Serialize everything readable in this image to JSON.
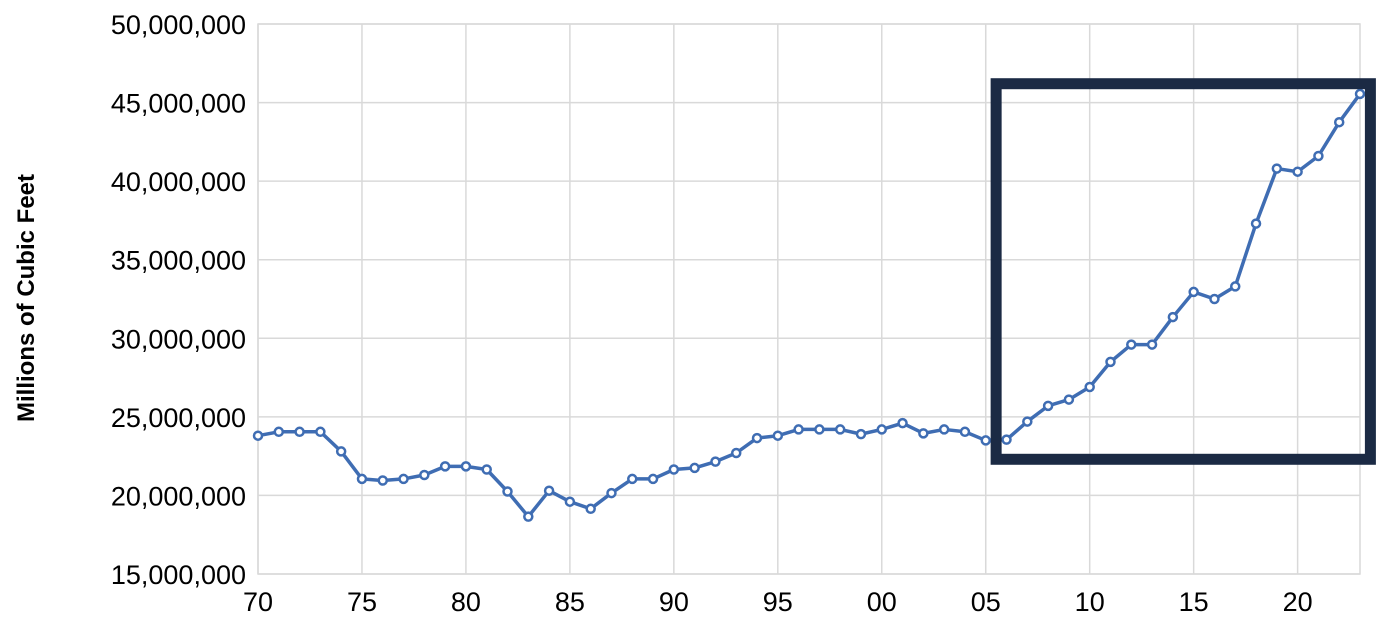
{
  "chart_data": {
    "type": "line",
    "title": "",
    "xlabel": "",
    "ylabel": "Millions of Cubic Feet",
    "x": [
      1970,
      1971,
      1972,
      1973,
      1974,
      1975,
      1976,
      1977,
      1978,
      1979,
      1980,
      1981,
      1982,
      1983,
      1984,
      1985,
      1986,
      1987,
      1988,
      1989,
      1990,
      1991,
      1992,
      1993,
      1994,
      1995,
      1996,
      1997,
      1998,
      1999,
      2000,
      2001,
      2002,
      2003,
      2004,
      2005,
      2006,
      2007,
      2008,
      2009,
      2010,
      2011,
      2012,
      2013,
      2014,
      2015,
      2016,
      2017,
      2018,
      2019,
      2020,
      2021,
      2022,
      2023
    ],
    "series": [
      {
        "values": [
          23800000,
          24050000,
          24050000,
          24050000,
          22800000,
          21050000,
          20950000,
          21050000,
          21300000,
          21850000,
          21850000,
          21650000,
          20250000,
          18650000,
          20300000,
          19600000,
          19150000,
          20150000,
          21050000,
          21050000,
          21650000,
          21750000,
          22150000,
          22700000,
          23650000,
          23800000,
          24200000,
          24200000,
          24200000,
          23900000,
          24200000,
          24600000,
          23950000,
          24200000,
          24050000,
          23500000,
          23550000,
          24700000,
          25700000,
          26100000,
          26900000,
          28500000,
          29600000,
          29600000,
          31350000,
          32950000,
          32500000,
          33300000,
          37300000,
          40800000,
          40600000,
          41600000,
          43750000,
          45550000
        ]
      }
    ],
    "xlim": [
      1970,
      2023
    ],
    "ylim": [
      15000000,
      50000000
    ],
    "y_ticks": [
      {
        "value": 50000000,
        "label": "50,000,000"
      },
      {
        "value": 45000000,
        "label": "45,000,000"
      },
      {
        "value": 40000000,
        "label": "40,000,000"
      },
      {
        "value": 35000000,
        "label": "35,000,000"
      },
      {
        "value": 30000000,
        "label": "30,000,000"
      },
      {
        "value": 25000000,
        "label": "25,000,000"
      },
      {
        "value": 20000000,
        "label": "20,000,000"
      },
      {
        "value": 15000000,
        "label": "15,000,000"
      }
    ],
    "x_ticks": [
      {
        "value": 1970,
        "label": "70"
      },
      {
        "value": 1975,
        "label": "75"
      },
      {
        "value": 1980,
        "label": "80"
      },
      {
        "value": 1985,
        "label": "85"
      },
      {
        "value": 1990,
        "label": "90"
      },
      {
        "value": 1995,
        "label": "95"
      },
      {
        "value": 2000,
        "label": "00"
      },
      {
        "value": 2005,
        "label": "05"
      },
      {
        "value": 2010,
        "label": "10"
      },
      {
        "value": 2015,
        "label": "15"
      },
      {
        "value": 2020,
        "label": "20"
      }
    ],
    "grid": true,
    "highlight_box": {
      "x_from": 2005.5,
      "x_to": 2023.5,
      "y_from": 22300000,
      "y_to": 46200000
    },
    "colors": {
      "line": "#3f6db3",
      "marker_fill": "#ffffff",
      "grid": "#d9d9d9",
      "highlight_border": "#1b2a44"
    }
  }
}
